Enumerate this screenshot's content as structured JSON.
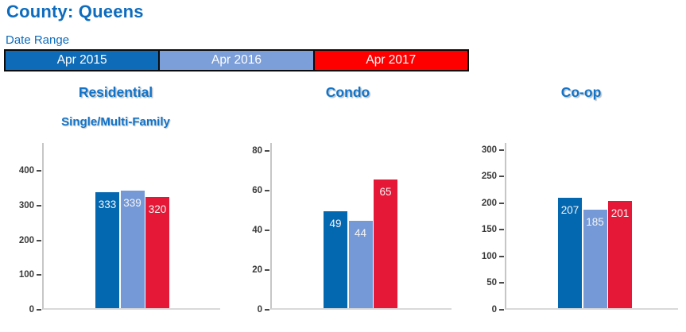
{
  "header": {
    "title": "County: Queens"
  },
  "legend": {
    "label": "Date Range",
    "items": [
      {
        "label": "Apr 2015",
        "color": "#0d6bb8"
      },
      {
        "label": "Apr 2016",
        "color": "#7c9ed9"
      },
      {
        "label": "Apr 2017",
        "color": "#fe0000"
      }
    ]
  },
  "colors": {
    "accent_blue": "#0d6cbe",
    "chart_title_blue": "#1173c9",
    "bar_series": [
      "#0468b1",
      "#7499d6",
      "#e51937"
    ],
    "axis_line": "#c6c6c6",
    "tick_label": "#3a3a3a",
    "bar_label": "#ffffff",
    "legend_border": "#0b0b0b"
  },
  "chart_data": [
    {
      "type": "bar",
      "title": "Residential",
      "subtitle": "Single/Multi-Family",
      "categories": [
        "Apr 2015",
        "Apr 2016",
        "Apr 2017"
      ],
      "values": [
        333,
        339,
        320
      ],
      "yticks": [
        0,
        100,
        200,
        300,
        400
      ],
      "ylim": [
        0,
        480
      ],
      "xlabel": "",
      "ylabel": "",
      "grid": false,
      "bar_value_labels": true,
      "legend_position": "top"
    },
    {
      "type": "bar",
      "title": "Condo",
      "categories": [
        "Apr 2015",
        "Apr 2016",
        "Apr 2017"
      ],
      "values": [
        49,
        44,
        65
      ],
      "yticks": [
        0,
        20,
        40,
        60,
        80
      ],
      "ylim": [
        0,
        84
      ],
      "xlabel": "",
      "ylabel": "",
      "grid": false,
      "bar_value_labels": true,
      "legend_position": "top"
    },
    {
      "type": "bar",
      "title": "Co-op",
      "categories": [
        "Apr 2015",
        "Apr 2016",
        "Apr 2017"
      ],
      "values": [
        207,
        185,
        201
      ],
      "yticks": [
        0,
        50,
        100,
        150,
        200,
        250,
        300
      ],
      "ylim": [
        0,
        313
      ],
      "xlabel": "",
      "ylabel": "",
      "grid": false,
      "bar_value_labels": true,
      "legend_position": "top"
    }
  ]
}
